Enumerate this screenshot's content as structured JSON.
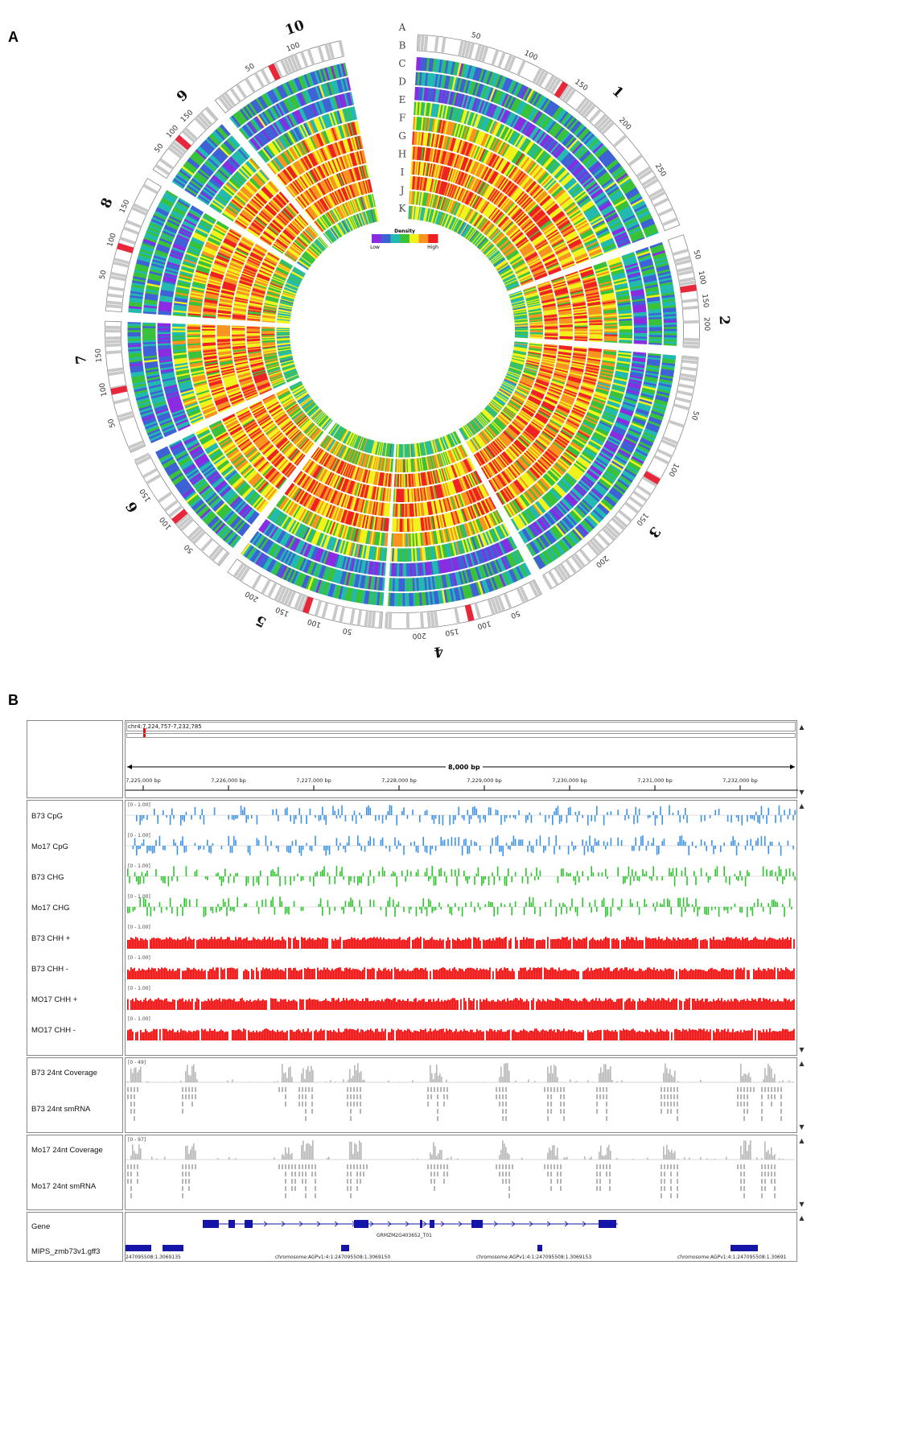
{
  "panel_a_letter": "A",
  "panel_b_letter": "B",
  "circos": {
    "ring_letters": [
      "A",
      "B",
      "C",
      "D",
      "E",
      "F",
      "G",
      "H",
      "I",
      "J",
      "K"
    ],
    "legend_title": "Density",
    "legend_low": "Low",
    "legend_high": "High",
    "legend_colors": [
      "#8a2be2",
      "#3e62d6",
      "#22b9b0",
      "#39c13a",
      "#f2f21b",
      "#f7931e",
      "#ee2020"
    ],
    "chromosomes": [
      {
        "name": "1",
        "ticks": [
          "50",
          "100",
          "150",
          "200",
          "250"
        ]
      },
      {
        "name": "2",
        "ticks": [
          "50",
          "100",
          "150",
          "200"
        ]
      },
      {
        "name": "3",
        "ticks": [
          "50",
          "100",
          "150",
          "200"
        ]
      },
      {
        "name": "4",
        "ticks": [
          "50",
          "100",
          "150",
          "200"
        ]
      },
      {
        "name": "5",
        "ticks": [
          "50",
          "100",
          "150",
          "200"
        ]
      },
      {
        "name": "6",
        "ticks": [
          "50",
          "100",
          "150"
        ]
      },
      {
        "name": "7",
        "ticks": [
          "50",
          "100",
          "150"
        ]
      },
      {
        "name": "8",
        "ticks": [
          "50",
          "100",
          "150"
        ]
      },
      {
        "name": "9",
        "ticks": [
          "50",
          "100",
          "150"
        ]
      },
      {
        "name": "10",
        "ticks": [
          "50",
          "100"
        ]
      }
    ]
  },
  "igv": {
    "locus": "chr4:7,224,757-7,232,785",
    "span_label": "8,000 bp",
    "ruler_ticks": [
      "7,225,000 bp",
      "7,226,000 bp",
      "7,227,000 bp",
      "7,228,000 bp",
      "7,229,000 bp",
      "7,230,000 bp",
      "7,231,000 bp",
      "7,232,000 bp"
    ],
    "methylation_tracks": [
      {
        "label": "B73 CpG",
        "range": "[0 - 1.00]",
        "color": "#3f93e6"
      },
      {
        "label": "Mo17 CpG",
        "range": "[0 - 1.00]",
        "color": "#3f93e6"
      },
      {
        "label": "B73 CHG",
        "range": "[0 - 1.00]",
        "color": "#2fc52f"
      },
      {
        "label": "Mo17 CHG",
        "range": "[0 - 1.00]",
        "color": "#2fc52f"
      },
      {
        "label": "B73 CHH +",
        "range": "[0 - 1.00]",
        "color": "#f01010"
      },
      {
        "label": "B73 CHH -",
        "range": "[0 - 1.00]",
        "color": "#f01010"
      },
      {
        "label": "MO17 CHH +",
        "range": "[0 - 1.00]",
        "color": "#f01010"
      },
      {
        "label": "MO17 CHH -",
        "range": "[0 - 1.00]",
        "color": "#f01010"
      }
    ],
    "b73_coverage": {
      "label": "B73 24nt Coverage",
      "range": "[0 - 49]"
    },
    "b73_smrna": {
      "label": "B73 24nt smRNA"
    },
    "mo17_coverage": {
      "label": "Mo17 24nt Coverage",
      "range": "[0 - 97]"
    },
    "mo17_smrna": {
      "label": "Mo17 24nt smRNA"
    },
    "gene_track": {
      "label": "Gene",
      "transcript": "GRMZM2G403652_T01"
    },
    "mips_track": {
      "label": "MIPS_zmb73v1.gff3",
      "features": [
        "247095508:1.3069135",
        "chromosome:AGPv1:4:1:247095508:1.3069150",
        "chromosome:AGPv1:4:1:247095508:1.3069153",
        "chromosome:AGPv1:4:1:247095508:1.30691"
      ]
    }
  }
}
